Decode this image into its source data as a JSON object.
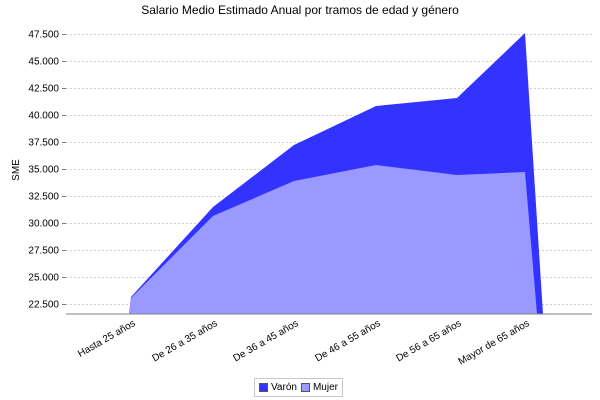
{
  "chart_data": {
    "type": "area",
    "title": "Salario Medio Estimado Anual por tramos de edad y género",
    "xlabel": "",
    "ylabel": "SME",
    "categories": [
      "Hasta 25  años",
      "De 26 a 35  años",
      "De 36 a 45  años",
      "De 46 a 55  años",
      "De 56 a 65  años",
      "Mayor de 65  años"
    ],
    "series": [
      {
        "name": "Varón",
        "color": "#3333ff",
        "values": [
          23150,
          31480,
          37220,
          40830,
          41570,
          47590
        ]
      },
      {
        "name": "Mujer",
        "color": "#9999ff",
        "values": [
          23060,
          30650,
          33890,
          35370,
          34440,
          34720
        ]
      }
    ],
    "ylim": [
      21574,
      47870
    ],
    "yticks": [
      "22.500",
      "25.000",
      "27.500",
      "30.000",
      "32.500",
      "35.000",
      "37.500",
      "40.000",
      "42.500",
      "45.000",
      "47.500"
    ],
    "ytick_values": [
      22500,
      25000,
      27500,
      30000,
      32500,
      35000,
      37500,
      40000,
      42500,
      45000,
      47500
    ],
    "grid": true,
    "legend_position": "bottom"
  },
  "legend": {
    "items": [
      {
        "label": "Varón",
        "color": "#3333ff"
      },
      {
        "label": "Mujer",
        "color": "#9999ff"
      }
    ]
  }
}
